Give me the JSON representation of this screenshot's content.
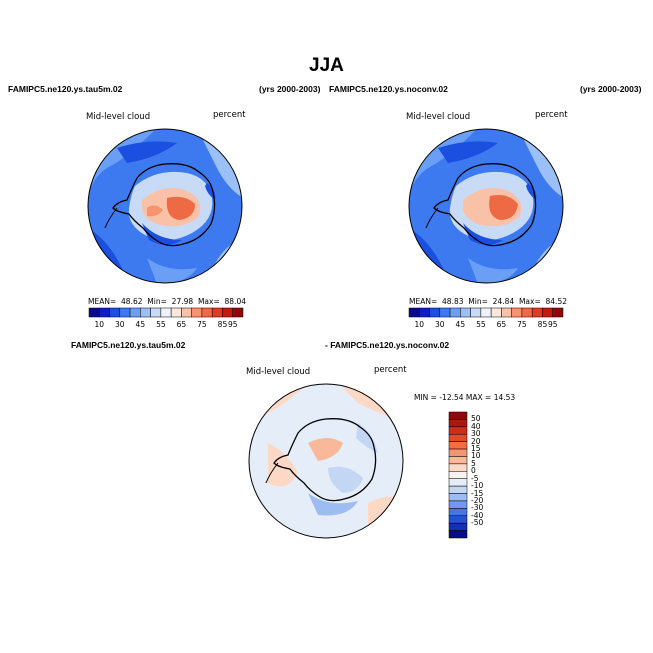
{
  "page": {
    "title": "JJA",
    "panels": {
      "top_left": {
        "header_left": "FAMIPC5.ne120.ys.tau5m.02",
        "header_right": "(yrs 2000-2003)",
        "field_label": "Mid-level cloud",
        "units_label": "percent",
        "stats": {
          "mean_label": "MEAN=",
          "mean": "48.62",
          "min_label": "Min=",
          "min": "27.98",
          "max_label": "Max=",
          "max": "88.04"
        }
      },
      "top_right": {
        "header_left": "FAMIPC5.ne120.ys.noconv.02",
        "header_right": "(yrs 2000-2003)",
        "field_label": "Mid-level cloud",
        "units_label": "percent",
        "stats": {
          "mean_label": "MEAN=",
          "mean": "48.83",
          "min_label": "Min=",
          "min": "24.84",
          "max_label": "Max=",
          "max": "84.52"
        }
      },
      "bottom": {
        "header_left": "FAMIPC5.ne120.ys.tau5m.02",
        "header_right": "- FAMIPC5.ne120.ys.noconv.02",
        "field_label": "Mid-level cloud",
        "units_label": "percent",
        "minmax_text": "MIN = -12.54  MAX =  14.53"
      }
    },
    "colorbar_horizontal": {
      "colors": [
        "#0a0a8c",
        "#0f1fc4",
        "#1a4fe0",
        "#3d7af0",
        "#6a9ff5",
        "#9bc0f7",
        "#c7dbf7",
        "#eef3fb",
        "#fde6dc",
        "#f9c2a8",
        "#f5946f",
        "#ee6a45",
        "#de3d22",
        "#c21c10",
        "#8c0a0a"
      ],
      "tick_labels": [
        "10",
        "30",
        "45",
        "55",
        "65",
        "75",
        "85",
        "95"
      ]
    },
    "colorbar_vertical": {
      "colors_top_to_bottom": [
        "#8c0a0a",
        "#b0160e",
        "#cf2d15",
        "#e44a25",
        "#f06f45",
        "#f59470",
        "#f9b89a",
        "#fcd8c5",
        "#f8f2ee",
        "#e4edf8",
        "#c3d7f5",
        "#9cbcf2",
        "#7299ee",
        "#4a74e6",
        "#2a4fd4",
        "#1530b0",
        "#0a0a8c"
      ],
      "tick_labels_top_to_bottom": [
        "50",
        "40",
        "30",
        "20",
        "15",
        "10",
        "5",
        "0",
        "-5",
        "-10",
        "-15",
        "-20",
        "-30",
        "-40",
        "-50"
      ]
    }
  }
}
